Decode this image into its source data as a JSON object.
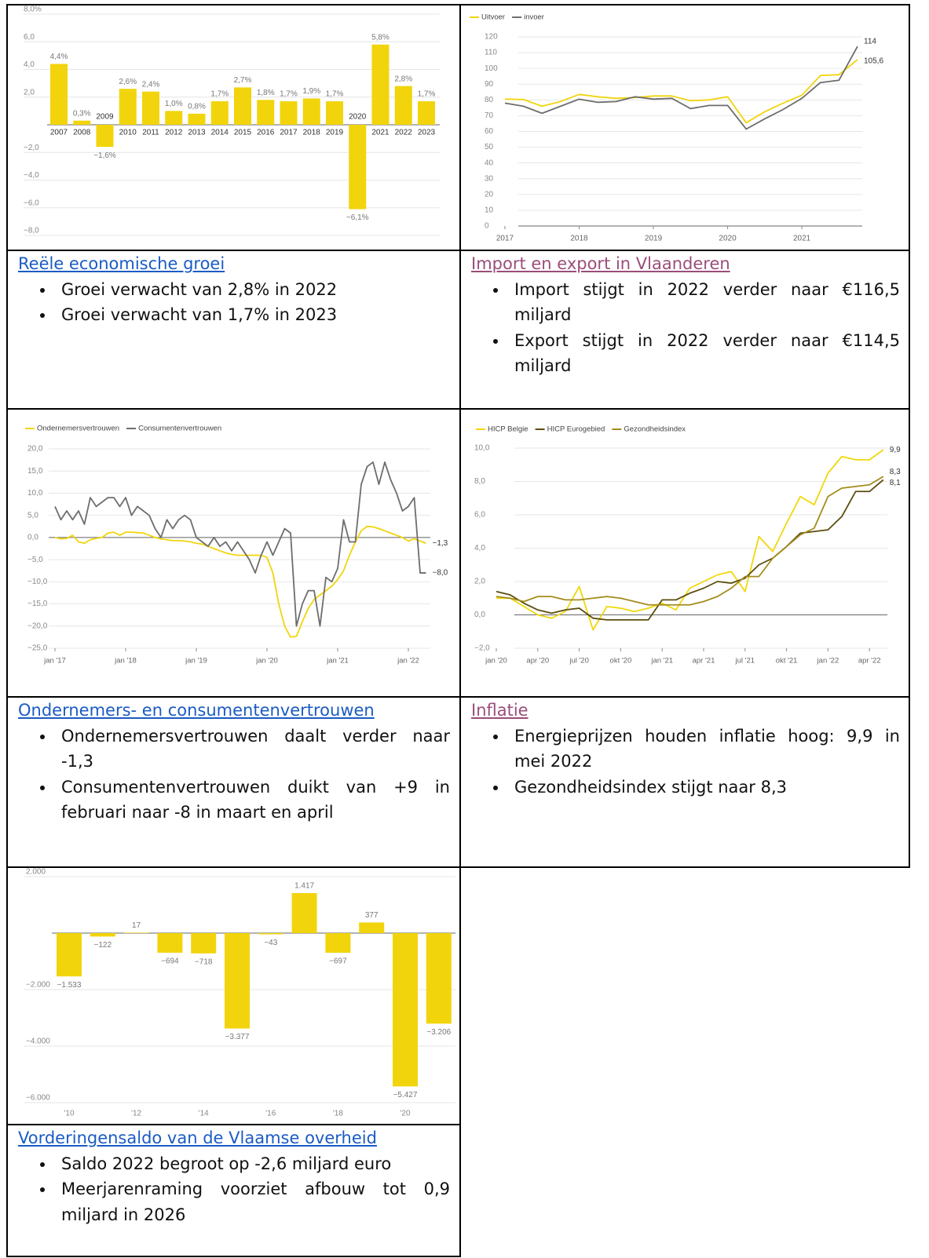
{
  "chart_data": [
    {
      "type": "bar",
      "categories": [
        "2007",
        "2008",
        "2009",
        "2010",
        "2011",
        "2012",
        "2013",
        "2014",
        "2015",
        "2016",
        "2017",
        "2018",
        "2019",
        "2020",
        "2021",
        "2022",
        "2023"
      ],
      "values": [
        4.4,
        0.3,
        -1.6,
        2.6,
        2.4,
        1.0,
        0.8,
        1.7,
        2.7,
        1.8,
        1.7,
        1.9,
        1.7,
        -6.1,
        5.8,
        2.8,
        1.7
      ],
      "value_labels": [
        "4,4%",
        "0,3%",
        "−1,6%",
        "2,6%",
        "2,4%",
        "1,0%",
        "0,8%",
        "1,7%",
        "2,7%",
        "1,8%",
        "1,7%",
        "1,9%",
        "1,7%",
        "−6,1%",
        "5,8%",
        "2,8%",
        "1,7%"
      ],
      "color": "#f2d40c",
      "ylim": [
        -8,
        8
      ],
      "yticks": [
        {
          "value": 8,
          "label": "8,0%"
        },
        {
          "value": 6,
          "label": "6,0"
        },
        {
          "value": 4,
          "label": "4,0"
        },
        {
          "value": 2,
          "label": "2,0"
        },
        {
          "value": -2,
          "label": "−2,0"
        },
        {
          "value": -4,
          "label": "−4,0"
        },
        {
          "value": -6,
          "label": "−6,0"
        },
        {
          "value": -8,
          "label": "−8,0"
        }
      ],
      "grid": true
    },
    {
      "type": "line",
      "x": [
        2017,
        2017.25,
        2017.5,
        2017.75,
        2018,
        2018.25,
        2018.5,
        2018.75,
        2019,
        2019.25,
        2019.5,
        2019.75,
        2020,
        2020.25,
        2020.5,
        2020.75,
        2021,
        2021.25,
        2021.5,
        2021.75
      ],
      "series": [
        {
          "name": "Uitvoer",
          "color": "#f2d40c",
          "values": [
            80.5,
            80.3,
            76,
            79,
            83.5,
            82,
            81,
            81.5,
            82.5,
            82.5,
            79.5,
            80,
            82,
            65.5,
            72.5,
            78,
            83,
            95.5,
            96,
            105.6
          ],
          "value_labels": [
            null,
            null,
            null,
            null,
            null,
            null,
            null,
            null,
            null,
            null,
            null,
            null,
            null,
            null,
            null,
            null,
            null,
            null,
            null,
            "105,6"
          ]
        },
        {
          "name": "invoer",
          "color": "#6d6d6d",
          "values": [
            78,
            76,
            71.5,
            76,
            80.5,
            78.5,
            79,
            82,
            80.5,
            81,
            74.5,
            76.5,
            76.5,
            61.5,
            68,
            74,
            81,
            91,
            92.5,
            114
          ],
          "value_labels": [
            null,
            null,
            null,
            null,
            null,
            null,
            null,
            null,
            null,
            null,
            null,
            null,
            null,
            null,
            null,
            null,
            null,
            null,
            null,
            "114"
          ]
        }
      ],
      "xlim": [
        2016.9,
        2021.75
      ],
      "xticks": [
        2017,
        2018,
        2019,
        2020,
        2021
      ],
      "ylim": [
        0,
        120
      ],
      "yticks": [
        0,
        10,
        20,
        30,
        40,
        50,
        60,
        70,
        80,
        90,
        100,
        110,
        120
      ],
      "grid": true,
      "legend": "top-left"
    },
    {
      "type": "line",
      "categories": [
        "jan '17",
        null,
        null,
        null,
        null,
        null,
        null,
        null,
        null,
        null,
        null,
        null,
        "jan '18",
        null,
        null,
        null,
        null,
        null,
        null,
        null,
        null,
        null,
        null,
        null,
        "jan '19",
        null,
        null,
        null,
        null,
        null,
        null,
        null,
        null,
        null,
        null,
        null,
        "jan '20",
        null,
        null,
        null,
        null,
        null,
        null,
        null,
        null,
        null,
        null,
        null,
        "jan '21",
        null,
        null,
        null,
        null,
        null,
        null,
        null,
        null,
        null,
        null,
        null,
        "jan '22",
        null,
        null,
        null
      ],
      "series": [
        {
          "name": "Ondernemersvertrouwen",
          "color": "#f2d40c",
          "values": [
            0,
            -0.3,
            -0.2,
            0.5,
            -1,
            -1.3,
            -0.5,
            -0.2,
            0,
            1,
            1.2,
            0.5,
            1.2,
            1.2,
            1.1,
            1,
            0.5,
            0,
            -0.3,
            -0.5,
            -0.7,
            -0.7,
            -0.8,
            -1,
            -1.3,
            -1.5,
            -2,
            -2.5,
            -3,
            -3.5,
            -3.8,
            -4,
            -4,
            -4,
            -4,
            -4,
            -4.5,
            -8,
            -15,
            -20,
            -22.5,
            -22.3,
            -19,
            -16,
            -14,
            -13,
            -12,
            -11,
            -9.5,
            -7.5,
            -4,
            -1,
            1.5,
            2.5,
            2.4,
            2,
            1.5,
            1,
            0.5,
            0,
            -0.8,
            -0.3,
            -0.8,
            -1.3
          ],
          "value_labels": [
            null,
            null,
            null,
            null,
            null,
            null,
            null,
            null,
            null,
            null,
            null,
            null,
            null,
            null,
            null,
            null,
            null,
            null,
            null,
            null,
            null,
            null,
            null,
            null,
            null,
            null,
            null,
            null,
            null,
            null,
            null,
            null,
            null,
            null,
            null,
            null,
            null,
            null,
            null,
            null,
            null,
            null,
            null,
            null,
            null,
            null,
            null,
            null,
            null,
            null,
            null,
            null,
            null,
            null,
            null,
            null,
            null,
            null,
            null,
            null,
            null,
            null,
            null,
            "−1,3"
          ]
        },
        {
          "name": "Consumentenvertrouwen",
          "color": "#6d6d6d",
          "values": [
            7,
            4,
            6,
            4,
            6,
            3,
            9,
            7,
            8,
            9,
            9,
            7,
            9,
            5,
            7,
            6,
            5,
            2,
            0,
            4,
            2,
            4,
            5,
            4,
            0,
            -1,
            -2,
            0,
            -2,
            -1,
            -3,
            -1,
            -3,
            -5,
            -8,
            -4,
            -1,
            -4,
            -1,
            2,
            1,
            -20,
            -15,
            -12,
            -12,
            -20,
            -9,
            -10,
            -7,
            4,
            -1,
            -1,
            12,
            16,
            17,
            12,
            17,
            13,
            10,
            6,
            7,
            9,
            -8,
            -8
          ],
          "value_labels": [
            null,
            null,
            null,
            null,
            null,
            null,
            null,
            null,
            null,
            null,
            null,
            null,
            null,
            null,
            null,
            null,
            null,
            null,
            null,
            null,
            null,
            null,
            null,
            null,
            null,
            null,
            null,
            null,
            null,
            null,
            null,
            null,
            null,
            null,
            null,
            null,
            null,
            null,
            null,
            null,
            null,
            null,
            null,
            null,
            null,
            null,
            null,
            null,
            null,
            null,
            null,
            null,
            null,
            null,
            null,
            null,
            null,
            null,
            null,
            null,
            null,
            null,
            null,
            "−8,0"
          ]
        }
      ],
      "ylim": [
        -25,
        20
      ],
      "yticks": [
        {
          "value": 20,
          "label": "20,0"
        },
        {
          "value": 15,
          "label": "15,0"
        },
        {
          "value": 10,
          "label": "10,0"
        },
        {
          "value": 5,
          "label": "5,0"
        },
        {
          "value": 0,
          "label": "0,0"
        },
        {
          "value": -5,
          "label": "−5,0"
        },
        {
          "value": -10,
          "label": "−10,0"
        },
        {
          "value": -15,
          "label": "−15,0"
        },
        {
          "value": -20,
          "label": "−20,0"
        },
        {
          "value": -25,
          "label": "−25,0"
        }
      ],
      "grid": true,
      "legend": "top-left"
    },
    {
      "type": "line",
      "categories": [
        "jan '20",
        null,
        null,
        "apr '20",
        null,
        null,
        "jul '20",
        null,
        null,
        "okt '20",
        null,
        null,
        "jan '21",
        null,
        null,
        "apr '21",
        null,
        null,
        "jul '21",
        null,
        null,
        "okt '21",
        null,
        null,
        "jan '22",
        null,
        null,
        "apr '22",
        null
      ],
      "series": [
        {
          "name": "HICP Belgie",
          "color": "#f0d80a",
          "values": [
            1.0,
            1.0,
            0.5,
            0.0,
            -0.2,
            0.2,
            1.7,
            -0.9,
            0.5,
            0.4,
            0.2,
            0.4,
            0.7,
            0.3,
            1.6,
            2.0,
            2.4,
            2.6,
            1.4,
            4.7,
            3.8,
            5.5,
            7.1,
            6.6,
            8.5,
            9.5,
            9.3,
            9.3,
            9.9
          ],
          "value_labels": [
            null,
            null,
            null,
            null,
            null,
            null,
            null,
            null,
            null,
            null,
            null,
            null,
            null,
            null,
            null,
            null,
            null,
            null,
            null,
            null,
            null,
            null,
            null,
            null,
            null,
            null,
            null,
            null,
            "9,9"
          ]
        },
        {
          "name": "HICP Eurogebied",
          "color": "#5c4c0e",
          "values": [
            1.4,
            1.2,
            0.7,
            0.3,
            0.1,
            0.3,
            0.4,
            -0.2,
            -0.3,
            -0.3,
            -0.3,
            -0.3,
            0.9,
            0.9,
            1.3,
            1.6,
            2.0,
            1.9,
            2.2,
            3.0,
            3.4,
            4.1,
            4.9,
            5.0,
            5.1,
            5.9,
            7.4,
            7.4,
            8.1
          ],
          "value_labels": [
            null,
            null,
            null,
            null,
            null,
            null,
            null,
            null,
            null,
            null,
            null,
            null,
            null,
            null,
            null,
            null,
            null,
            null,
            null,
            null,
            null,
            null,
            null,
            null,
            null,
            null,
            null,
            null,
            "8,1"
          ]
        },
        {
          "name": "Gezondheidsindex",
          "color": "#a38c1c",
          "values": [
            1.1,
            1.0,
            0.8,
            1.1,
            1.1,
            0.9,
            0.9,
            1.0,
            1.1,
            1.0,
            0.8,
            0.6,
            0.6,
            0.6,
            0.6,
            0.8,
            1.1,
            1.6,
            2.3,
            2.3,
            3.4,
            4.1,
            4.8,
            5.2,
            7.1,
            7.6,
            7.7,
            7.8,
            8.3
          ],
          "value_labels": [
            null,
            null,
            null,
            null,
            null,
            null,
            null,
            null,
            null,
            null,
            null,
            null,
            null,
            null,
            null,
            null,
            null,
            null,
            null,
            null,
            null,
            null,
            null,
            null,
            null,
            null,
            null,
            null,
            "8,3"
          ]
        }
      ],
      "ylim": [
        -2,
        10
      ],
      "yticks": [
        {
          "value": 10,
          "label": "10,0"
        },
        {
          "value": 8,
          "label": "8,0"
        },
        {
          "value": 6,
          "label": "6,0"
        },
        {
          "value": 4,
          "label": "4,0"
        },
        {
          "value": 2,
          "label": "2,0"
        },
        {
          "value": 0,
          "label": "0,0"
        },
        {
          "value": -2,
          "label": "−2,0"
        }
      ],
      "grid": true,
      "legend": "top-left"
    },
    {
      "type": "bar",
      "categories": [
        "'10",
        null,
        "'12",
        null,
        "'14",
        null,
        "'16",
        null,
        "'18",
        null,
        "'20",
        null
      ],
      "values": [
        -1533,
        -122,
        17,
        -694,
        -718,
        -3377,
        -43,
        1417,
        -697,
        377,
        -5427,
        -3206
      ],
      "value_labels": [
        "−1.533",
        "−122",
        "17",
        "−694",
        "−718",
        "−3.377",
        "−43",
        "1.417",
        "−697",
        "377",
        "−5.427",
        "−3.206"
      ],
      "color": "#f2d40c",
      "ylim": [
        -6000,
        2000
      ],
      "yticks": [
        {
          "value": 2000,
          "label": "2.000"
        },
        {
          "value": -2000,
          "label": "−2.000"
        },
        {
          "value": -4000,
          "label": "−4.000"
        },
        {
          "value": -6000,
          "label": "−6.000"
        }
      ],
      "grid": true
    }
  ],
  "sections": [
    {
      "heading": "Reële economische groei",
      "bullets": [
        "Groei verwacht van 2,8% in 2022",
        "Groei verwacht van 1,7% in 2023"
      ]
    },
    {
      "heading": "Import en export in Vlaanderen",
      "bullets": [
        "Import stijgt in 2022 verder naar  €116,5 miljard",
        "Export  stijgt in 2022 verder naar  €114,5 miljard"
      ]
    },
    {
      "heading": "Ondernemers- en consumentenvertrouwen",
      "bullets": [
        "Ondernemersvertrouwen daalt verder naar -1,3",
        "Consumentenvertrouwen duikt van +9 in februari naar -8 in maart en april"
      ]
    },
    {
      "heading": "Inflatie",
      "bullets": [
        "Energieprijzen houden inflatie hoog: 9,9 in mei 2022",
        "Gezondheidsindex stijgt naar 8,3"
      ]
    },
    {
      "heading": "Vorderingensaldo van de Vlaamse overheid",
      "bullets": [
        "Saldo 2022 begroot op -2,6 miljard euro",
        "Meerjarenraming voorziet afbouw tot 0,9 miljard in 2026"
      ]
    }
  ]
}
